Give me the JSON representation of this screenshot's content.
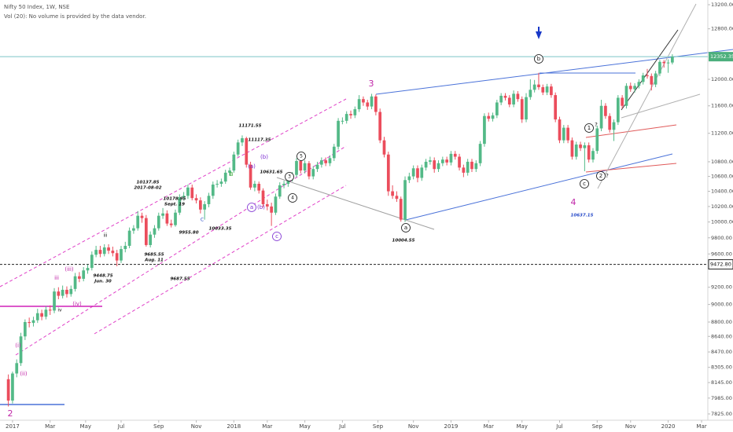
{
  "chart_data": {
    "type": "candlestick",
    "title": "Nifty 50 Index, 1W, NSE",
    "subtitle": "Vol (20): No volume is provided by the data vendor.",
    "log_scale": true,
    "up_color": "#53b987",
    "down_color": "#eb4d5c",
    "ylim": [
      7825,
      13200
    ],
    "yticks": [
      {
        "value": 13200,
        "label": "13200.00"
      },
      {
        "value": 12800,
        "label": "12800.00"
      },
      {
        "value": 12000,
        "label": "12000.00"
      },
      {
        "value": 11600,
        "label": "11600.00"
      },
      {
        "value": 11200,
        "label": "11200.00"
      },
      {
        "value": 10800,
        "label": "10800.00"
      },
      {
        "value": 10600,
        "label": "10600.00"
      },
      {
        "value": 10400,
        "label": "10400.00"
      },
      {
        "value": 10200,
        "label": "10200.00"
      },
      {
        "value": 10000,
        "label": "10000.00"
      },
      {
        "value": 9800,
        "label": "9800.00"
      },
      {
        "value": 9600,
        "label": "9600.00"
      },
      {
        "value": 9200,
        "label": "9200.00"
      },
      {
        "value": 9000,
        "label": "9000.00"
      },
      {
        "value": 8800,
        "label": "8800.00"
      },
      {
        "value": 8640,
        "label": "8640.00"
      },
      {
        "value": 8470,
        "label": "8470.00"
      },
      {
        "value": 8305,
        "label": "8305.00"
      },
      {
        "value": 8145,
        "label": "8145.00"
      },
      {
        "value": 7985,
        "label": "7985.00"
      },
      {
        "value": 7825,
        "label": "7825.00"
      }
    ],
    "xlim": [
      -2,
      167.5
    ],
    "xticks": [
      {
        "value": 1,
        "label": "2017"
      },
      {
        "value": 10,
        "label": "Mar"
      },
      {
        "value": 18.5,
        "label": "May"
      },
      {
        "value": 27,
        "label": "Jul"
      },
      {
        "value": 36,
        "label": "Sep"
      },
      {
        "value": 45,
        "label": "Nov"
      },
      {
        "value": 54,
        "label": "2018"
      },
      {
        "value": 62,
        "label": "Mar"
      },
      {
        "value": 71,
        "label": "May"
      },
      {
        "value": 80,
        "label": "Jul"
      },
      {
        "value": 88.5,
        "label": "Sep"
      },
      {
        "value": 97,
        "label": "Nov"
      },
      {
        "value": 106,
        "label": "2019"
      },
      {
        "value": 115,
        "label": "Mar"
      },
      {
        "value": 123,
        "label": "May"
      },
      {
        "value": 132,
        "label": "Jul"
      },
      {
        "value": 141,
        "label": "Sep"
      },
      {
        "value": 149,
        "label": "Nov"
      },
      {
        "value": 158,
        "label": "2020"
      },
      {
        "value": 166,
        "label": "Mar"
      }
    ],
    "last_price": 12352.35,
    "reference_line": {
      "value": 9472.8,
      "label": "9472.80"
    },
    "ohlc": [
      [
        8180,
        8230,
        7900,
        7960
      ],
      [
        7960,
        8260,
        7930,
        8240
      ],
      [
        8240,
        8390,
        8200,
        8350
      ],
      [
        8350,
        8680,
        8320,
        8640
      ],
      [
        8640,
        8830,
        8600,
        8800
      ],
      [
        8800,
        8850,
        8740,
        8790
      ],
      [
        8790,
        8860,
        8750,
        8820
      ],
      [
        8820,
        8950,
        8790,
        8900
      ],
      [
        8900,
        8940,
        8820,
        8860
      ],
      [
        8860,
        8980,
        8830,
        8940
      ],
      [
        8940,
        8990,
        8880,
        8930
      ],
      [
        8930,
        9190,
        8900,
        9150
      ],
      [
        9150,
        9200,
        9060,
        9100
      ],
      [
        9100,
        9220,
        9070,
        9170
      ],
      [
        9170,
        9210,
        9080,
        9120
      ],
      [
        9120,
        9220,
        9090,
        9180
      ],
      [
        9180,
        9370,
        9150,
        9330
      ],
      [
        9330,
        9380,
        9260,
        9300
      ],
      [
        9300,
        9440,
        9270,
        9400
      ],
      [
        9400,
        9470,
        9360,
        9430
      ],
      [
        9430,
        9630,
        9400,
        9590
      ],
      [
        9590,
        9700,
        9560,
        9650
      ],
      [
        9650,
        9700,
        9560,
        9600
      ],
      [
        9600,
        9720,
        9570,
        9680
      ],
      [
        9680,
        9720,
        9600,
        9640
      ],
      [
        9640,
        9690,
        9570,
        9610
      ],
      [
        9610,
        9650,
        9450,
        9520
      ],
      [
        9520,
        9700,
        9490,
        9660
      ],
      [
        9660,
        9750,
        9620,
        9700
      ],
      [
        9700,
        9930,
        9670,
        9890
      ],
      [
        9890,
        9960,
        9850,
        9920
      ],
      [
        9920,
        10140,
        9890,
        10080
      ],
      [
        10080,
        10120,
        9990,
        10050
      ],
      [
        10050,
        10090,
        9690,
        9710
      ],
      [
        9710,
        9880,
        9680,
        9840
      ],
      [
        9840,
        9960,
        9800,
        9920
      ],
      [
        9920,
        10120,
        9890,
        10080
      ],
      [
        10080,
        10180,
        10040,
        10110
      ],
      [
        10110,
        10150,
        9950,
        9980
      ],
      [
        9980,
        10030,
        9930,
        9960
      ],
      [
        9960,
        10160,
        9940,
        10120
      ],
      [
        10120,
        10360,
        10090,
        10320
      ],
      [
        10320,
        10390,
        10280,
        10340
      ],
      [
        10340,
        10490,
        10300,
        10450
      ],
      [
        10450,
        10490,
        10280,
        10310
      ],
      [
        10310,
        10360,
        10240,
        10280
      ],
      [
        10280,
        10320,
        10110,
        10160
      ],
      [
        10160,
        10270,
        10030,
        10230
      ],
      [
        10230,
        10380,
        10190,
        10340
      ],
      [
        10340,
        10530,
        10300,
        10490
      ],
      [
        10490,
        10550,
        10450,
        10500
      ],
      [
        10500,
        10570,
        10460,
        10530
      ],
      [
        10530,
        10690,
        10500,
        10650
      ],
      [
        10650,
        10720,
        10610,
        10680
      ],
      [
        10680,
        10940,
        10650,
        10900
      ],
      [
        10900,
        11110,
        10870,
        11070
      ],
      [
        11070,
        11170,
        11020,
        11130
      ],
      [
        11130,
        11150,
        10720,
        10760
      ],
      [
        10760,
        10800,
        10420,
        10450
      ],
      [
        10450,
        10540,
        10400,
        10500
      ],
      [
        10500,
        10530,
        10370,
        10410
      ],
      [
        10410,
        10440,
        10190,
        10230
      ],
      [
        10230,
        10290,
        10150,
        10200
      ],
      [
        10200,
        10250,
        9950,
        10120
      ],
      [
        10120,
        10370,
        10090,
        10330
      ],
      [
        10330,
        10520,
        10300,
        10480
      ],
      [
        10480,
        10540,
        10440,
        10500
      ],
      [
        10500,
        10610,
        10460,
        10570
      ],
      [
        10570,
        10660,
        10530,
        10620
      ],
      [
        10620,
        10850,
        10590,
        10810
      ],
      [
        10810,
        10830,
        10640,
        10680
      ],
      [
        10680,
        10820,
        10640,
        10780
      ],
      [
        10780,
        10810,
        10560,
        10600
      ],
      [
        10600,
        10740,
        10560,
        10700
      ],
      [
        10700,
        10800,
        10660,
        10760
      ],
      [
        10760,
        10860,
        10720,
        10820
      ],
      [
        10820,
        10860,
        10740,
        10780
      ],
      [
        10780,
        10890,
        10740,
        10850
      ],
      [
        10850,
        11050,
        10810,
        11010
      ],
      [
        11010,
        11420,
        10970,
        11380
      ],
      [
        11380,
        11430,
        11330,
        11380
      ],
      [
        11380,
        11520,
        11340,
        11480
      ],
      [
        11480,
        11530,
        11410,
        11460
      ],
      [
        11460,
        11590,
        11420,
        11550
      ],
      [
        11550,
        11760,
        11510,
        11700
      ],
      [
        11700,
        11740,
        11600,
        11650
      ],
      [
        11650,
        11690,
        11540,
        11590
      ],
      [
        11590,
        11780,
        11550,
        11740
      ],
      [
        11740,
        11770,
        11460,
        11510
      ],
      [
        11510,
        11560,
        11060,
        11100
      ],
      [
        11100,
        11150,
        10860,
        10900
      ],
      [
        10900,
        10940,
        10340,
        10400
      ],
      [
        10400,
        10480,
        10300,
        10340
      ],
      [
        10340,
        10400,
        10260,
        10300
      ],
      [
        10300,
        10330,
        10004.55,
        10030
      ],
      [
        10030,
        10600,
        10000,
        10550
      ],
      [
        10550,
        10650,
        10510,
        10600
      ],
      [
        10600,
        10750,
        10560,
        10710
      ],
      [
        10710,
        10750,
        10520,
        10580
      ],
      [
        10580,
        10760,
        10540,
        10720
      ],
      [
        10720,
        10840,
        10680,
        10800
      ],
      [
        10800,
        10870,
        10760,
        10820
      ],
      [
        10820,
        10860,
        10650,
        10700
      ],
      [
        10700,
        10820,
        10660,
        10780
      ],
      [
        10780,
        10870,
        10740,
        10830
      ],
      [
        10830,
        10870,
        10750,
        10790
      ],
      [
        10790,
        10950,
        10750,
        10910
      ],
      [
        10910,
        10950,
        10830,
        10870
      ],
      [
        10870,
        10910,
        10680,
        10720
      ],
      [
        10720,
        10760,
        10590,
        10650
      ],
      [
        10650,
        10840,
        10610,
        10800
      ],
      [
        10800,
        10840,
        10660,
        10700
      ],
      [
        10700,
        10820,
        10660,
        10780
      ],
      [
        10780,
        11090,
        10740,
        11050
      ],
      [
        11050,
        11490,
        11010,
        11450
      ],
      [
        11450,
        11500,
        11370,
        11410
      ],
      [
        11410,
        11500,
        11370,
        11460
      ],
      [
        11460,
        11690,
        11420,
        11650
      ],
      [
        11650,
        11790,
        11610,
        11750
      ],
      [
        11750,
        11790,
        11680,
        11720
      ],
      [
        11720,
        11760,
        11580,
        11620
      ],
      [
        11620,
        11830,
        11580,
        11780
      ],
      [
        11780,
        11820,
        11660,
        11700
      ],
      [
        11700,
        11740,
        11350,
        11400
      ],
      [
        11400,
        11790,
        11360,
        11730
      ],
      [
        11730,
        12000,
        11690,
        11840
      ],
      [
        11840,
        11990,
        11800,
        11920
      ],
      [
        11920,
        12100,
        11840,
        11880
      ],
      [
        11880,
        11920,
        11760,
        11800
      ],
      [
        11800,
        11930,
        11760,
        11890
      ],
      [
        11890,
        11930,
        11720,
        11760
      ],
      [
        11760,
        11800,
        11360,
        11400
      ],
      [
        11400,
        11440,
        11060,
        11100
      ],
      [
        11100,
        11320,
        11060,
        11280
      ],
      [
        11280,
        11320,
        11060,
        11100
      ],
      [
        11100,
        11140,
        10830,
        10870
      ],
      [
        10870,
        11080,
        10830,
        11040
      ],
      [
        11040,
        11080,
        10950,
        10990
      ],
      [
        10990,
        11070,
        10670,
        11030
      ],
      [
        11030,
        11070,
        10790,
        10830
      ],
      [
        10830,
        10990,
        10790,
        10950
      ],
      [
        10950,
        11310,
        10910,
        11270
      ],
      [
        11270,
        11690,
        11230,
        11600
      ],
      [
        11600,
        11640,
        11410,
        11450
      ],
      [
        11450,
        11490,
        11210,
        11250
      ],
      [
        11250,
        11400,
        11090,
        11360
      ],
      [
        11360,
        11760,
        11320,
        11720
      ],
      [
        11720,
        11760,
        11560,
        11600
      ],
      [
        11600,
        11940,
        11560,
        11900
      ],
      [
        11900,
        11950,
        11810,
        11850
      ],
      [
        11850,
        11940,
        11800,
        11900
      ],
      [
        11900,
        12000,
        11860,
        11960
      ],
      [
        11960,
        12100,
        11920,
        12060
      ],
      [
        12060,
        12160,
        12010,
        12050
      ],
      [
        12050,
        12090,
        11830,
        11920
      ],
      [
        11920,
        12130,
        11880,
        12090
      ],
      [
        12090,
        12300,
        12050,
        12270
      ],
      [
        12270,
        12300,
        12180,
        12250
      ],
      [
        12250,
        12310,
        12100,
        12260
      ],
      [
        12260,
        12390,
        12230,
        12352.35
      ]
    ],
    "annotations": [
      "3",
      "4",
      "2",
      "10137.85",
      "2017-08-02",
      "10178.95",
      "Sept. 19",
      "9955.80",
      "10033.35",
      "9685.55",
      "Aug. 11",
      "9448.75",
      "Jun. 30",
      "9687.55",
      "11171.55",
      "11117.35",
      "10631.65",
      "10004.55",
      "10637.15",
      "(i)",
      "(ii)",
      "(iii)",
      "(iv)",
      "iii",
      "iv",
      "iii",
      "(a)",
      "(b)",
      "c",
      "a",
      "(b)",
      "a",
      "b",
      "c",
      "1",
      "2",
      "?",
      "?",
      "5",
      "3",
      "4",
      "B",
      "C"
    ]
  }
}
